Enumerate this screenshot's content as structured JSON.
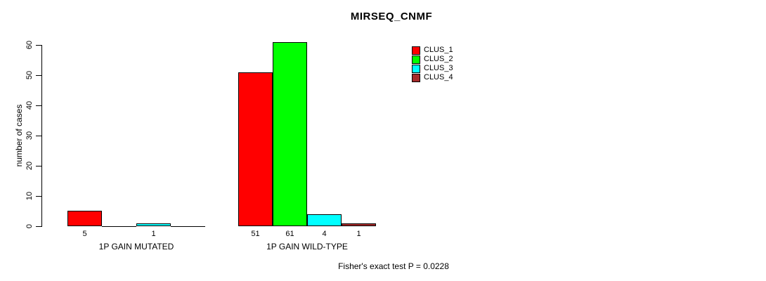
{
  "chart_data": {
    "type": "bar",
    "title": "MIRSEQ_CNMF",
    "ylabel": "number of cases",
    "xlabel": "",
    "groups": [
      "1P GAIN MUTATED",
      "1P GAIN WILD-TYPE"
    ],
    "series": [
      {
        "name": "CLUS_1",
        "color": "#FF0000",
        "values": [
          5,
          51
        ]
      },
      {
        "name": "CLUS_2",
        "color": "#00FF00",
        "values": [
          0,
          61
        ]
      },
      {
        "name": "CLUS_3",
        "color": "#00FFFF",
        "values": [
          1,
          4
        ]
      },
      {
        "name": "CLUS_4",
        "color": "#A52A2A",
        "values": [
          0,
          1
        ]
      }
    ],
    "yticks": [
      0,
      10,
      20,
      30,
      40,
      50,
      60
    ],
    "ylim": [
      0,
      65
    ],
    "grid": false,
    "show_zero_value_labels": false,
    "legend_position": "top-right",
    "annotation": "Fisher's exact test P = 0.0228",
    "colors": {
      "bar_border": "#000000",
      "text": "#000000",
      "background": "#FFFFFF"
    }
  }
}
